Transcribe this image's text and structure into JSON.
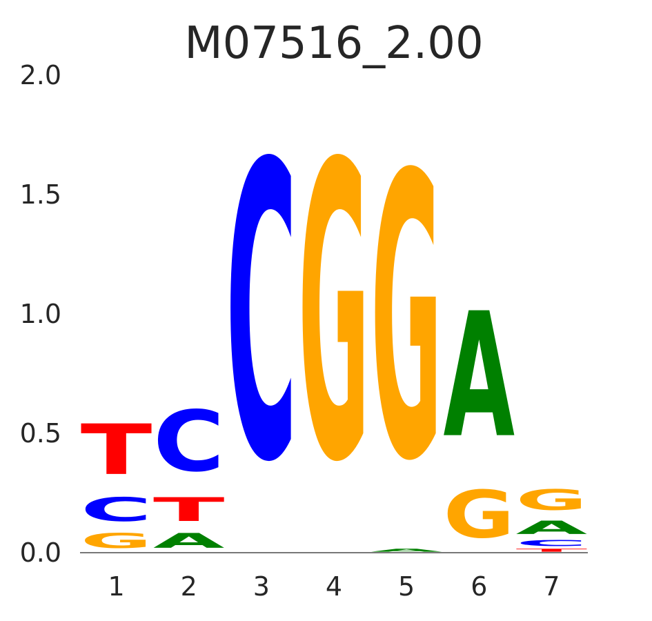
{
  "chart_data": {
    "type": "sequence-logo",
    "title": "M07516_2.00",
    "xlabel": "",
    "ylabel": "",
    "ylim": [
      0,
      2.0
    ],
    "yticks": [
      "0.0",
      "0.5",
      "1.0",
      "1.5",
      "2.0"
    ],
    "categories": [
      "1",
      "2",
      "3",
      "4",
      "5",
      "6",
      "7"
    ],
    "colors": {
      "A": "#008000",
      "C": "#0000ff",
      "G": "#ffa500",
      "T": "#ff0000"
    },
    "positions": [
      {
        "position": "1",
        "letters": [
          {
            "letter": "G",
            "height": 0.1
          },
          {
            "letter": "C",
            "height": 0.16
          },
          {
            "letter": "T",
            "height": 0.34
          }
        ]
      },
      {
        "position": "2",
        "letters": [
          {
            "letter": "A",
            "height": 0.1
          },
          {
            "letter": "T",
            "height": 0.16
          },
          {
            "letter": "C",
            "height": 0.41
          }
        ]
      },
      {
        "position": "3",
        "letters": [
          {
            "letter": "C",
            "height": 1.99
          }
        ]
      },
      {
        "position": "4",
        "letters": [
          {
            "letter": "G",
            "height": 1.99
          }
        ]
      },
      {
        "position": "5",
        "letters": [
          {
            "letter": "A",
            "height": 0.02
          },
          {
            "letter": "G",
            "height": 1.91
          }
        ]
      },
      {
        "position": "6",
        "letters": [
          {
            "letter": "G",
            "height": 0.32
          },
          {
            "letter": "A",
            "height": 0.84
          }
        ]
      },
      {
        "position": "7",
        "letters": [
          {
            "letter": "T",
            "height": 0.02
          },
          {
            "letter": "C",
            "height": 0.04
          },
          {
            "letter": "A",
            "height": 0.09
          },
          {
            "letter": "G",
            "height": 0.14
          }
        ]
      }
    ]
  }
}
